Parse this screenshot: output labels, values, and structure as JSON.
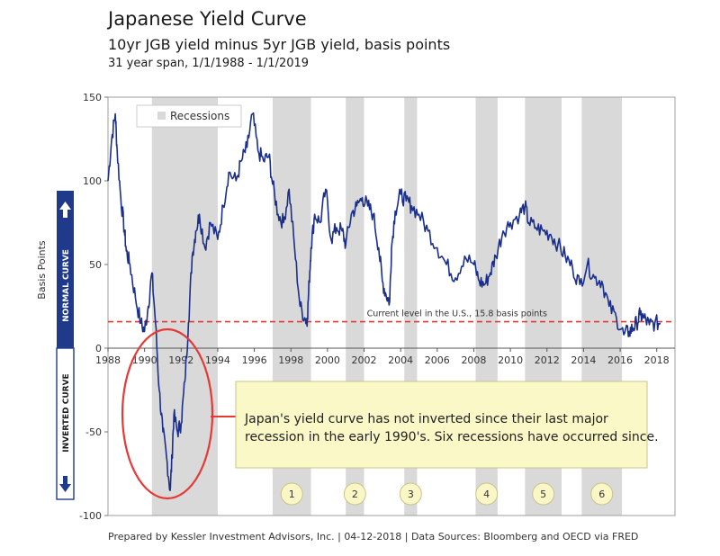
{
  "header": {
    "title": "Japanese Yield Curve",
    "subtitle": "10yr JGB yield minus 5yr JGB yield, basis points",
    "span": "31 year span, 1/1/1988 - 1/1/2019"
  },
  "footer": {
    "text": "Prepared by Kessler Investment Advisors, Inc. | 04-12-2018 | Data Sources: Bloomberg and OECD via FRED"
  },
  "side_labels": {
    "normal": "NORMAL CURVE",
    "inverted": "INVERTED CURVE"
  },
  "colors": {
    "series": "#1a2f8c",
    "recession_shade": "#d9d9d9",
    "reference_line": "#e53935",
    "callout_fill": "#fbf8c8",
    "callout_border": "#c9c48a",
    "circle": "#e53935",
    "badge_fill": "#fbf6c6",
    "side_bar": "#1f3a8a"
  },
  "chart_data": {
    "type": "line",
    "title": "Japanese Yield Curve",
    "subtitle": "10yr JGB yield minus 5yr JGB yield, basis points",
    "xlabel": "",
    "ylabel": "Basis Points",
    "xlim": [
      1988,
      2019
    ],
    "ylim": [
      -100,
      150
    ],
    "x_ticks": [
      "1988",
      "1990",
      "1992",
      "1994",
      "1996",
      "1998",
      "2000",
      "2002",
      "2004",
      "2006",
      "2008",
      "2010",
      "2012",
      "2014",
      "2016",
      "2018"
    ],
    "y_ticks": [
      "-100",
      "-50",
      "0",
      "50",
      "100",
      "150"
    ],
    "legend": {
      "label": "Recessions",
      "position": "top-left"
    },
    "recessions": [
      {
        "start": 1990.4,
        "end": 1994.0,
        "label": ""
      },
      {
        "start": 1997.0,
        "end": 1999.1,
        "label": "1"
      },
      {
        "start": 2001.0,
        "end": 2002.0,
        "label": "2"
      },
      {
        "start": 2004.2,
        "end": 2004.9,
        "label": "3"
      },
      {
        "start": 2008.1,
        "end": 2009.3,
        "label": "4"
      },
      {
        "start": 2010.8,
        "end": 2012.8,
        "label": "5"
      },
      {
        "start": 2013.9,
        "end": 2016.1,
        "label": "6"
      }
    ],
    "reference_line": {
      "y": 15.8,
      "label": "Current level in the U.S., 15.8 basis points"
    },
    "annotation": "Japan's yield curve has not inverted since their last major recession in the early 1990's. Six recessions have occurred since.",
    "series": [
      {
        "name": "10yr JGB yield minus 5yr JGB yield",
        "x": [
          1988.0,
          1988.2,
          1988.4,
          1988.5,
          1988.7,
          1988.9,
          1989.0,
          1989.2,
          1989.5,
          1989.8,
          1990.0,
          1990.2,
          1990.4,
          1990.6,
          1990.8,
          1991.0,
          1991.2,
          1991.4,
          1991.5,
          1991.6,
          1991.8,
          1992.0,
          1992.2,
          1992.4,
          1992.6,
          1992.8,
          1993.0,
          1993.3,
          1993.6,
          1994.0,
          1994.3,
          1994.6,
          1995.0,
          1995.3,
          1995.6,
          1995.9,
          1996.2,
          1996.5,
          1996.8,
          1997.0,
          1997.3,
          1997.6,
          1997.9,
          1998.2,
          1998.5,
          1998.8,
          1998.9,
          1999.0,
          1999.1,
          1999.3,
          1999.6,
          1999.9,
          2000.2,
          2000.5,
          2000.8,
          2001.0,
          2001.3,
          2001.6,
          2001.9,
          2002.2,
          2002.5,
          2002.8,
          2003.0,
          2003.2,
          2003.4,
          2003.5,
          2003.7,
          2004.0,
          2004.3,
          2004.6,
          2005.0,
          2005.5,
          2006.0,
          2006.5,
          2007.0,
          2007.5,
          2008.0,
          2008.3,
          2008.6,
          2008.9,
          2009.2,
          2009.6,
          2010.0,
          2010.5,
          2010.8,
          2011.0,
          2011.4,
          2011.8,
          2012.2,
          2012.6,
          2013.0,
          2013.4,
          2013.8,
          2014.2,
          2014.6,
          2015.0,
          2015.4,
          2015.8,
          2016.2,
          2016.5,
          2016.7,
          2016.9,
          2017.1,
          2017.3,
          2017.6,
          2017.9,
          2018.2
        ],
        "values": [
          100,
          125,
          140,
          118,
          90,
          70,
          58,
          50,
          30,
          15,
          10,
          25,
          45,
          15,
          -25,
          -50,
          -65,
          -85,
          -65,
          -40,
          -50,
          -45,
          -20,
          15,
          55,
          70,
          80,
          60,
          75,
          65,
          85,
          105,
          100,
          112,
          120,
          140,
          118,
          112,
          115,
          98,
          80,
          75,
          95,
          60,
          25,
          17,
          18,
          40,
          60,
          80,
          75,
          95,
          65,
          72,
          70,
          62,
          80,
          85,
          90,
          85,
          80,
          60,
          40,
          32,
          28,
          60,
          82,
          92,
          88,
          85,
          80,
          70,
          60,
          50,
          42,
          55,
          50,
          40,
          38,
          45,
          55,
          70,
          75,
          80,
          85,
          75,
          72,
          70,
          68,
          62,
          55,
          48,
          38,
          50,
          42,
          40,
          25,
          18,
          8,
          10,
          12,
          15,
          20,
          18,
          14,
          15,
          15
        ]
      }
    ]
  }
}
